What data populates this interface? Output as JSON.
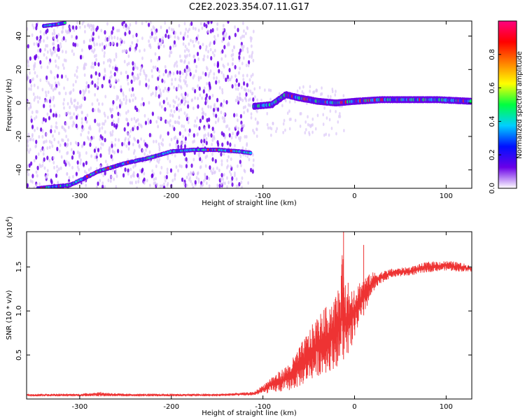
{
  "title": "C2E2.2023.354.07.11.G17",
  "colors": {
    "snr_line": "#ee3333",
    "spec_dark": "#6a00e8",
    "spec_light": "#dcc8f8"
  },
  "chart_data": [
    {
      "type": "heatmap",
      "xlabel": "Height of straight line (km)",
      "ylabel": "Frequency (Hz)",
      "xlim": [
        -358,
        128
      ],
      "ylim": [
        -51,
        49
      ],
      "xticks": [
        -300,
        -200,
        -100,
        0,
        100
      ],
      "yticks": [
        -40,
        -20,
        0,
        20,
        40
      ],
      "colorbar": {
        "label": "Normalized spectral amplitude",
        "range": [
          0.0,
          1.0
        ],
        "ticks": [
          "0.0",
          "0.2",
          "0.4",
          "0.6",
          "0.8"
        ],
        "tick_values": [
          0.0,
          0.2,
          0.4,
          0.6,
          0.8
        ],
        "colors": [
          "#ffffff",
          "#6a00e8",
          "#0010ff",
          "#00d0ff",
          "#00ff40",
          "#ffff00",
          "#ff8000",
          "#ff0000",
          "#ff0080"
        ]
      },
      "features": [
        {
          "name_note": "low track",
          "points": [
            [
              -345,
              -51
            ],
            [
              -310,
              -49
            ],
            [
              -280,
              -41
            ],
            [
              -250,
              -36
            ],
            [
              -225,
              -33
            ],
            [
              -200,
              -29
            ],
            [
              -175,
              -28
            ],
            [
              -150,
              -28
            ],
            [
              -125,
              -29
            ],
            [
              -112,
              -30
            ]
          ]
        },
        {
          "name_note": "top track",
          "points": [
            [
              -340,
              46
            ],
            [
              -325,
              47
            ],
            [
              -315,
              48
            ]
          ]
        },
        {
          "name_note": "center band",
          "points": [
            [
              -110,
              -2
            ],
            [
              -90,
              -1
            ],
            [
              -75,
              5
            ],
            [
              -60,
              3
            ],
            [
              -40,
              1
            ],
            [
              -20,
              0
            ],
            [
              0,
              1
            ],
            [
              30,
              2
            ],
            [
              60,
              2
            ],
            [
              90,
              2
            ],
            [
              128,
              1
            ]
          ]
        }
      ]
    },
    {
      "type": "line",
      "xlabel": "Height of straight line (km)",
      "ylabel": "SNR (10 * v/v)",
      "scale_label": "(x10",
      "scale_exp": "4",
      "scale_close": ")",
      "xlim": [
        -358,
        128
      ],
      "ylim": [
        0.0,
        1.9
      ],
      "xticks": [
        -300,
        -200,
        -100,
        0,
        100
      ],
      "yticks": [
        0.5,
        1.0,
        1.5
      ],
      "x": [
        -358,
        -300,
        -280,
        -250,
        -200,
        -150,
        -110,
        -100,
        -90,
        -80,
        -70,
        -60,
        -50,
        -40,
        -30,
        -20,
        -15,
        -12,
        -10,
        -5,
        0,
        10,
        20,
        30,
        40,
        60,
        80,
        100,
        110,
        128
      ],
      "y_low": [
        0.03,
        0.03,
        0.03,
        0.03,
        0.03,
        0.03,
        0.04,
        0.06,
        0.07,
        0.08,
        0.1,
        0.14,
        0.2,
        0.26,
        0.3,
        0.36,
        0.4,
        0.45,
        0.48,
        0.55,
        0.7,
        0.95,
        1.2,
        1.32,
        1.38,
        1.4,
        1.44,
        1.46,
        1.45,
        1.44
      ],
      "y_high": [
        0.06,
        0.06,
        0.08,
        0.06,
        0.06,
        0.06,
        0.08,
        0.16,
        0.26,
        0.33,
        0.42,
        0.6,
        0.78,
        0.95,
        1.06,
        1.2,
        1.35,
        1.92,
        1.3,
        1.25,
        1.3,
        1.38,
        1.44,
        1.45,
        1.48,
        1.5,
        1.56,
        1.57,
        1.56,
        1.52
      ],
      "spikes": [
        [
          -12,
          1.92
        ],
        [
          10,
          1.75
        ],
        [
          -7,
          1.32
        ],
        [
          -3,
          1.22
        ],
        [
          -277,
          0.08
        ]
      ]
    }
  ]
}
